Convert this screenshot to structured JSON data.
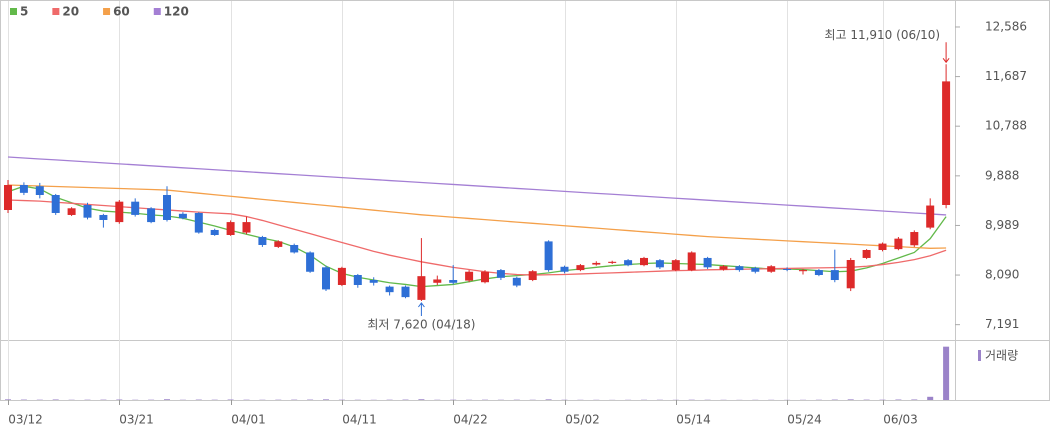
{
  "chart_data": {
    "type": "candlestick",
    "up_color": "#dd2a2a",
    "down_color": "#2e6fd6",
    "categories": [
      "03/12",
      null,
      null,
      null,
      null,
      null,
      null,
      "03/21",
      null,
      null,
      null,
      null,
      null,
      null,
      "04/01",
      null,
      null,
      null,
      null,
      null,
      null,
      "04/11",
      null,
      null,
      null,
      null,
      null,
      null,
      "04/22",
      null,
      null,
      null,
      null,
      null,
      null,
      "05/02",
      null,
      null,
      null,
      null,
      null,
      null,
      "05/14",
      null,
      null,
      null,
      null,
      null,
      null,
      "05/24",
      null,
      null,
      null,
      null,
      null,
      "06/03",
      null,
      null,
      null,
      null
    ],
    "open": [
      9269,
      9722,
      9700,
      9541,
      9179,
      9360,
      9179,
      9050,
      9420,
      9300,
      9541,
      9200,
      9215,
      8907,
      8816,
      8860,
      8780,
      8600,
      8635,
      8500,
      8230,
      7910,
      8091,
      8000,
      7880,
      7880,
      7640,
      7950,
      8000,
      7990,
      7960,
      8180,
      8040,
      8000,
      8700,
      8240,
      8180,
      8280,
      8310,
      8360,
      8270,
      8360,
      8180,
      8180,
      8400,
      8190,
      8250,
      8220,
      8150,
      8200,
      8160,
      8180,
      8180,
      7850,
      8400,
      8544,
      8560,
      8630,
      8950,
      9360
    ],
    "high": [
      9813,
      9770,
      9760,
      9560,
      9320,
      9400,
      9200,
      9450,
      9480,
      9320,
      9700,
      9230,
      9230,
      8930,
      9080,
      9150,
      8800,
      8720,
      8660,
      8520,
      8260,
      8240,
      8110,
      8050,
      7900,
      7900,
      8760,
      8080,
      8270,
      8180,
      8180,
      8200,
      8060,
      8180,
      8720,
      8260,
      8290,
      8340,
      8350,
      8380,
      8420,
      8380,
      8380,
      8520,
      8420,
      8270,
      8270,
      8240,
      8270,
      8230,
      8200,
      8200,
      8550,
      8400,
      8560,
      8680,
      8780,
      8900,
      9480,
      11910
    ],
    "low": [
      9215,
      9540,
      9480,
      9180,
      9160,
      9100,
      8950,
      9020,
      9150,
      9030,
      9060,
      9100,
      8840,
      8800,
      8800,
      8830,
      8600,
      8580,
      8480,
      8130,
      7800,
      7890,
      7860,
      7900,
      7720,
      7670,
      7620,
      7910,
      7920,
      7960,
      7940,
      8000,
      7870,
      7980,
      8150,
      8120,
      8160,
      8260,
      8290,
      8250,
      8250,
      8200,
      8160,
      8160,
      8200,
      8170,
      8150,
      8120,
      8130,
      8160,
      8100,
      8070,
      7960,
      7800,
      8380,
      8520,
      8540,
      8600,
      8920,
      9300
    ],
    "close": [
      9722,
      9580,
      9541,
      9215,
      9300,
      9130,
      9088,
      9420,
      9180,
      9050,
      9088,
      9120,
      8860,
      8816,
      9050,
      9050,
      8635,
      8700,
      8500,
      8150,
      7830,
      8220,
      7910,
      7950,
      7780,
      7690,
      8070,
      8010,
      7950,
      8150,
      8150,
      8040,
      7900,
      8160,
      8180,
      8150,
      8270,
      8310,
      8330,
      8270,
      8400,
      8230,
      8360,
      8500,
      8230,
      8250,
      8180,
      8150,
      8250,
      8190,
      8180,
      8091,
      8000,
      8363,
      8544,
      8660,
      8750,
      8870,
      9350,
      11600
    ],
    "series": [
      {
        "name": "5",
        "color": "#62b94a",
        "values": [
          9600,
          9700,
          9650,
          9500,
          9400,
          9300,
          9250,
          9230,
          9210,
          9180,
          9160,
          9120,
          9050,
          8980,
          8900,
          8830,
          8760,
          8700,
          8600,
          8450,
          8250,
          8120,
          8050,
          8000,
          7950,
          7920,
          7880,
          7900,
          7920,
          7970,
          8020,
          8060,
          8080,
          8100,
          8130,
          8170,
          8200,
          8230,
          8260,
          8280,
          8300,
          8310,
          8300,
          8290,
          8280,
          8260,
          8240,
          8220,
          8200,
          8200,
          8190,
          8170,
          8150,
          8160,
          8220,
          8300,
          8400,
          8500,
          8750,
          9150
        ]
      },
      {
        "name": "20",
        "color": "#ef6a6a",
        "values": [
          9450,
          9440,
          9430,
          9410,
          9390,
          9370,
          9350,
          9330,
          9310,
          9290,
          9270,
          9250,
          9230,
          9215,
          9200,
          9150,
          9080,
          9000,
          8920,
          8840,
          8760,
          8680,
          8600,
          8520,
          8450,
          8390,
          8330,
          8280,
          8230,
          8190,
          8150,
          8120,
          8100,
          8090,
          8095,
          8100,
          8110,
          8120,
          8130,
          8140,
          8150,
          8160,
          8170,
          8175,
          8185,
          8190,
          8195,
          8200,
          8205,
          8210,
          8215,
          8220,
          8225,
          8230,
          8250,
          8280,
          8320,
          8370,
          8440,
          8540
        ]
      },
      {
        "name": "60",
        "color": "#f4a04a",
        "values": [
          9722,
          9713,
          9704,
          9695,
          9686,
          9677,
          9668,
          9659,
          9650,
          9641,
          9630,
          9602,
          9574,
          9546,
          9518,
          9490,
          9462,
          9434,
          9406,
          9378,
          9350,
          9322,
          9294,
          9266,
          9238,
          9210,
          9182,
          9160,
          9138,
          9116,
          9094,
          9072,
          9050,
          9028,
          9006,
          8984,
          8962,
          8940,
          8918,
          8896,
          8874,
          8852,
          8830,
          8808,
          8786,
          8770,
          8755,
          8740,
          8725,
          8710,
          8695,
          8680,
          8665,
          8650,
          8635,
          8620,
          8605,
          8590,
          8575,
          8580
        ]
      },
      {
        "name": "120",
        "color": "#a47fd4",
        "values": [
          10230,
          10212,
          10194,
          10177,
          10159,
          10141,
          10123,
          10105,
          10088,
          10070,
          10052,
          10034,
          10016,
          9999,
          9981,
          9963,
          9945,
          9927,
          9910,
          9892,
          9874,
          9856,
          9838,
          9821,
          9803,
          9785,
          9767,
          9749,
          9732,
          9714,
          9696,
          9678,
          9660,
          9643,
          9625,
          9607,
          9589,
          9571,
          9554,
          9536,
          9518,
          9500,
          9482,
          9465,
          9447,
          9429,
          9411,
          9393,
          9376,
          9358,
          9340,
          9322,
          9304,
          9287,
          9269,
          9251,
          9233,
          9215,
          9198,
          9180
        ]
      }
    ],
    "volume": {
      "name": "거래량",
      "color": "#9b83c9",
      "ylim": [
        0,
        1050
      ],
      "values": [
        12,
        8,
        6,
        10,
        5,
        6,
        7,
        9,
        5,
        6,
        14,
        5,
        8,
        6,
        9,
        6,
        5,
        6,
        7,
        8,
        12,
        6,
        5,
        4,
        6,
        8,
        14,
        5,
        6,
        5,
        6,
        5,
        6,
        5,
        12,
        5,
        4,
        4,
        3,
        4,
        5,
        5,
        4,
        6,
        5,
        4,
        3,
        4,
        4,
        3,
        4,
        5,
        8,
        12,
        7,
        6,
        9,
        10,
        60,
        1000
      ]
    },
    "ylim": [
      6913,
      13075
    ],
    "yticks": [
      {
        "value": 12586,
        "label": "12,586"
      },
      {
        "value": 11687,
        "label": "11,687"
      },
      {
        "value": 10788,
        "label": "10,788"
      },
      {
        "value": 9888,
        "label": "9,888"
      },
      {
        "value": 8989,
        "label": "8,989"
      },
      {
        "value": 8090,
        "label": "8,090"
      },
      {
        "value": 7191,
        "label": "7,191"
      }
    ],
    "annotations": [
      {
        "text": "최고 11,910 (06/10)",
        "color": "#dd2a2a",
        "kind": "high"
      },
      {
        "text": "최저 7,620 (04/18)",
        "color": "#2e6fd6",
        "kind": "low"
      }
    ]
  }
}
